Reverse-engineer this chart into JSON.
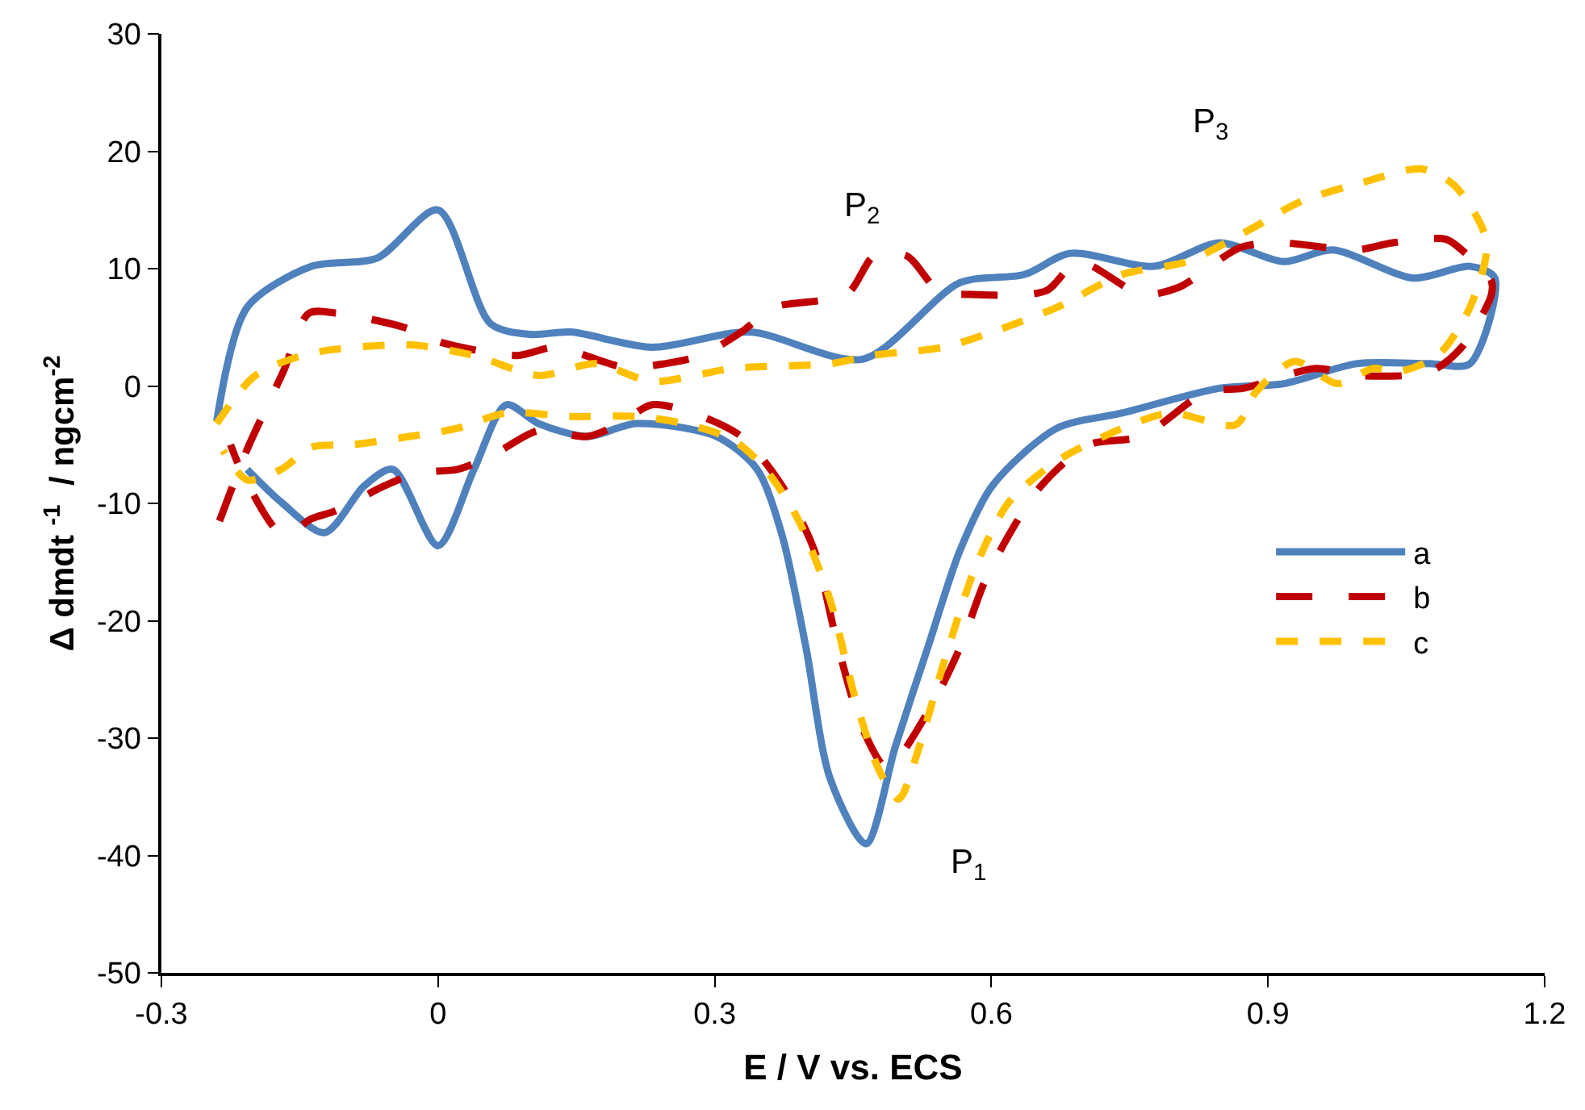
{
  "chart_data": {
    "type": "line",
    "xlabel": "E / V vs. ECS",
    "ylabel": "Δ dmdt $^{-1}$  / ngcm$^{-2}$",
    "xlim": [
      -0.3,
      1.2
    ],
    "xticks": [
      -0.3,
      0,
      0.3,
      0.6,
      0.9,
      1.2
    ],
    "ylim": [
      -50,
      30
    ],
    "yticks": [
      -50,
      -40,
      -30,
      -20,
      -10,
      0,
      10,
      20,
      30
    ],
    "grid": false,
    "legend": "right",
    "marker": "none",
    "annotations": [
      "P$_{1}$",
      "P$_{2}$",
      "P$_{3}$"
    ],
    "series": [
      {
        "name": "a",
        "color": "#4f81bd",
        "line_style": "solid",
        "x": [
          -0.24,
          -0.207,
          -0.137,
          -0.066,
          0,
          0.057,
          0.1,
          0.144,
          0.232,
          0.338,
          0.461,
          0.566,
          0.636,
          0.685,
          0.777,
          0.847,
          0.917,
          0.97,
          1.058,
          1.119,
          1.146,
          1.119,
          1.075,
          0.996,
          0.917,
          0.847,
          0.742,
          0.671,
          0.601,
          0.566,
          0.531,
          0.496,
          0.464,
          0.425,
          0.399,
          0.373,
          0.346,
          0.302,
          0.215,
          0.162,
          0.109,
          0.074,
          0.039,
          0,
          -0.049,
          -0.08,
          -0.123,
          -0.17,
          -0.207
        ],
        "values": [
          -3,
          6.7,
          10.2,
          10.9,
          15,
          5.3,
          4.4,
          4.6,
          3.3,
          4.6,
          2.3,
          8.8,
          9.5,
          11.3,
          10.2,
          12.2,
          10.6,
          11.6,
          9.2,
          10.2,
          9.2,
          1.9,
          1.9,
          1.9,
          0.2,
          -0.2,
          -2.3,
          -3.6,
          -8.5,
          -14,
          -22.3,
          -30.7,
          -39,
          -33.4,
          -22.3,
          -12.7,
          -7.1,
          -4.3,
          -3.2,
          -4.3,
          -3.2,
          -1.6,
          -7.1,
          -13.6,
          -7.1,
          -8.5,
          -12.5,
          -9.9,
          -7.1
        ]
      },
      {
        "name": "b",
        "color": "#c00000",
        "line_style": "dashed",
        "x": [
          -0.237,
          -0.207,
          -0.168,
          -0.14,
          -0.11,
          -0.037,
          0.004,
          0.086,
          0.127,
          0.202,
          0.246,
          0.285,
          0.329,
          0.364,
          0.443,
          0.473,
          0.508,
          0.543,
          0.578,
          0.659,
          0.694,
          0.763,
          0.803,
          0.87,
          0.912,
          0.996,
          1.035,
          1.093,
          1.11,
          1.142,
          1.142,
          1.11,
          1.075,
          0.996,
          0.952,
          0.873,
          0.833,
          0.763,
          0.706,
          0.654,
          0.619,
          0.592,
          0.566,
          0.531,
          0.487,
          0.461,
          0.434,
          0.408,
          0.373,
          0.329,
          0.276,
          0.232,
          0.197,
          0.162,
          0.109,
          0.057,
          0.021,
          -0.022,
          -0.058,
          -0.11,
          -0.137,
          -0.168,
          -0.21,
          -0.225
        ],
        "values": [
          -11.5,
          -5.4,
          1.2,
          6.2,
          6.2,
          5,
          3.7,
          2.6,
          3.3,
          1.6,
          1.9,
          2.6,
          4.6,
          6.7,
          7.8,
          11.1,
          11.1,
          8.1,
          7.8,
          8.1,
          10.6,
          7.8,
          8.4,
          11.8,
          12.2,
          11.6,
          12.2,
          12.5,
          11.6,
          9,
          7.7,
          3.3,
          1.2,
          0.9,
          1.5,
          -0.2,
          -0.5,
          -4.3,
          -5,
          -8.5,
          -12.7,
          -16.8,
          -22.3,
          -27.8,
          -32.5,
          -29.3,
          -22.3,
          -14,
          -8.5,
          -4.3,
          -2.3,
          -1.6,
          -3.2,
          -4.3,
          -3.8,
          -6,
          -7.1,
          -7.4,
          -8.5,
          -10.6,
          -11.3,
          -12.7,
          -7.8,
          -5
        ]
      },
      {
        "name": "c",
        "color": "#ffc000",
        "line_style": "dotted",
        "x": [
          -0.24,
          -0.198,
          -0.137,
          -0.031,
          0.039,
          0.109,
          0.171,
          0.232,
          0.32,
          0.425,
          0.469,
          0.548,
          0.601,
          0.671,
          0.742,
          0.812,
          0.882,
          0.935,
          1.005,
          1.066,
          1.102,
          1.137,
          1.119,
          1.084,
          1.04,
          1.014,
          0.975,
          0.929,
          0.887,
          0.865,
          0.794,
          0.742,
          0.671,
          0.619,
          0.583,
          0.548,
          0.522,
          0.504,
          0.499,
          0.478,
          0.452,
          0.425,
          0.39,
          0.355,
          0.32,
          0.267,
          0.215,
          0.144,
          0.074,
          0.021,
          -0.031,
          -0.093,
          -0.137,
          -0.17,
          -0.207,
          -0.233
        ],
        "values": [
          -3.2,
          0.9,
          2.8,
          3.5,
          2.6,
          0.9,
          1.9,
          0.4,
          1.5,
          1.9,
          2.6,
          3.3,
          4.6,
          6.7,
          9.5,
          10.6,
          13.4,
          15.7,
          17.4,
          18.5,
          17.1,
          12.3,
          6.7,
          2.6,
          1.2,
          1.5,
          0.2,
          2.1,
          -0.5,
          -3.3,
          -2.3,
          -3.6,
          -6.4,
          -9.9,
          -15.4,
          -23.7,
          -30.7,
          -34.8,
          -35.2,
          -32.7,
          -26.5,
          -18.2,
          -11.3,
          -7.1,
          -4.6,
          -3.2,
          -2.6,
          -2.6,
          -2.3,
          -3.6,
          -4.3,
          -5,
          -5.2,
          -7.1,
          -8,
          -5.5
        ]
      }
    ]
  }
}
